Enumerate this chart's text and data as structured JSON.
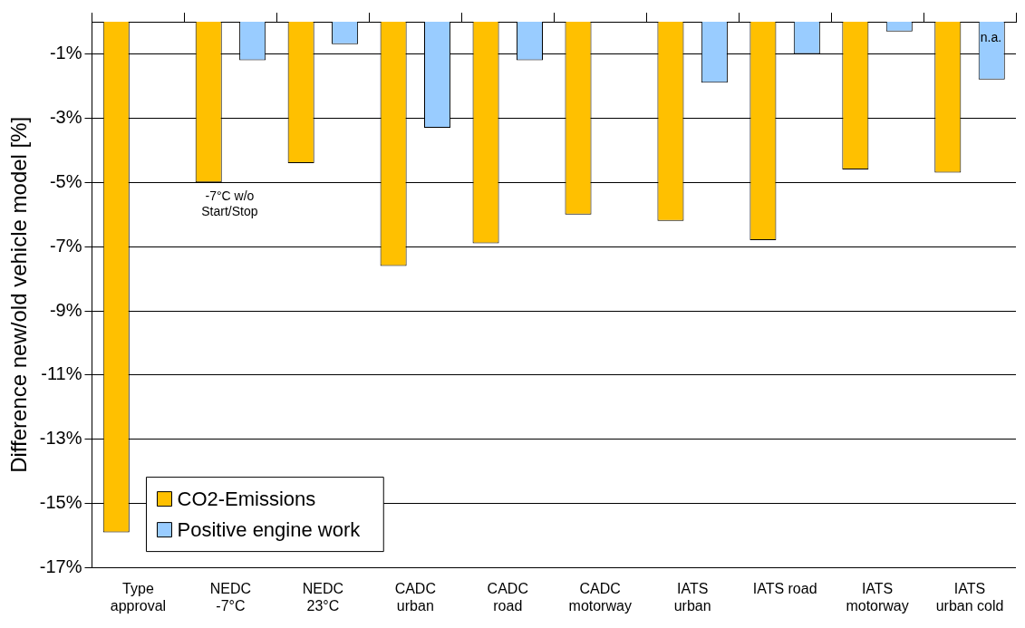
{
  "chart_data": {
    "type": "bar",
    "ylabel": "Difference new/old vehicle model [%]",
    "categories": [
      "Type\napproval",
      "NEDC\n-7°C",
      "NEDC\n23°C",
      "CADC\nurban",
      "CADC\nroad",
      "CADC\nmotorway",
      "IATS\nurban",
      "IATS road",
      "IATS\nmotorway",
      "IATS\nurban cold"
    ],
    "series": [
      {
        "name": "CO2-Emissions",
        "color": "#ffc000",
        "values": [
          -15.9,
          -5.0,
          -4.4,
          -7.6,
          -6.9,
          -6.0,
          -6.2,
          -6.8,
          -4.6,
          -4.7
        ]
      },
      {
        "name": "Positive engine work",
        "color": "#99ccff",
        "values": [
          null,
          -1.2,
          -0.7,
          -3.3,
          -1.2,
          null,
          -1.9,
          -1.0,
          -0.3,
          -1.8
        ]
      }
    ],
    "ylim": [
      -17,
      0
    ],
    "yticks": [
      {
        "value": -1,
        "label": "-1%"
      },
      {
        "value": -3,
        "label": "-3%"
      },
      {
        "value": -5,
        "label": "-5%"
      },
      {
        "value": -7,
        "label": "-7%"
      },
      {
        "value": -9,
        "label": "-9%"
      },
      {
        "value": -11,
        "label": "-11%"
      },
      {
        "value": -13,
        "label": "-13%"
      },
      {
        "value": -15,
        "label": "-15%"
      },
      {
        "value": -17,
        "label": "-17%"
      }
    ],
    "grid": "y",
    "legend": "bottom left",
    "annotations": [
      "-7°C w/o\nStart/Stop",
      "n.a."
    ]
  }
}
